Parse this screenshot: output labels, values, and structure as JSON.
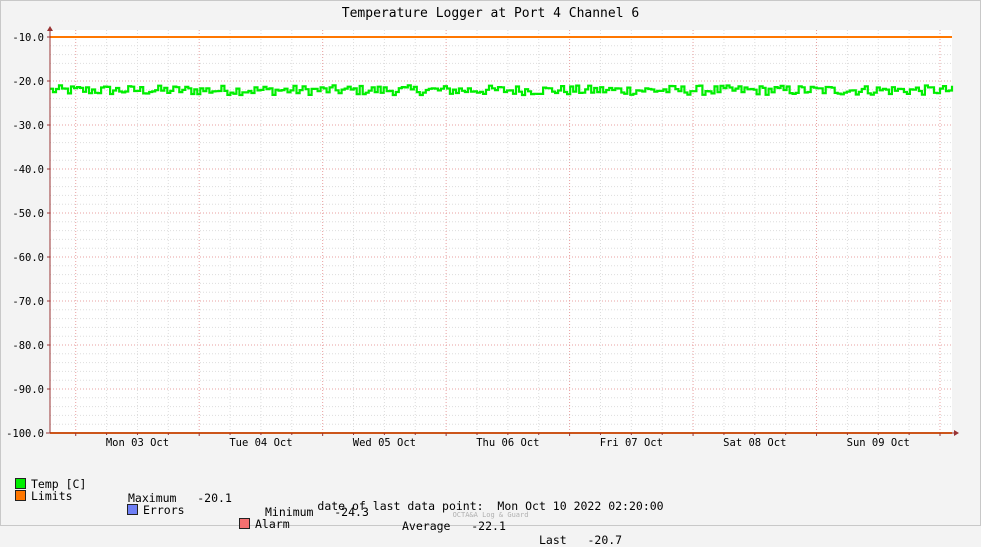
{
  "chart_data": {
    "type": "line",
    "title": "Temperature Logger at Port 4 Channel 6",
    "ylim": [
      -100,
      -10
    ],
    "y_ticks": [
      "-10.0",
      "-20.0",
      "-30.0",
      "-40.0",
      "-50.0",
      "-60.0",
      "-70.0",
      "-80.0",
      "-90.0",
      "-100.0"
    ],
    "x_range": [
      "2022-10-02 19:00",
      "2022-10-10 02:20"
    ],
    "x_ticks": [
      {
        "date": "2022-10-03",
        "label": "Mon 03 Oct"
      },
      {
        "date": "2022-10-04",
        "label": "Tue 04 Oct"
      },
      {
        "date": "2022-10-05",
        "label": "Wed 05 Oct"
      },
      {
        "date": "2022-10-06",
        "label": "Thu 06 Oct"
      },
      {
        "date": "2022-10-07",
        "label": "Fri 07 Oct"
      },
      {
        "date": "2022-10-08",
        "label": "Sat 08 Oct"
      },
      {
        "date": "2022-10-09",
        "label": "Sun 09 Oct"
      }
    ],
    "grid": true,
    "series": [
      {
        "name": "Temp [C]",
        "color": "#00ee00",
        "min": -24.3,
        "max": -20.1,
        "average": -22.1,
        "last": -20.7
      },
      {
        "name": "Limits",
        "color": "#ff7700",
        "values": [
          -10,
          -100
        ]
      }
    ],
    "legend": {
      "position": "bottom-left",
      "entries": [
        {
          "name": "Temp [C]",
          "color": "#00ee00"
        },
        {
          "name": "Limits",
          "color": "#ff7700"
        },
        {
          "name": "Errors",
          "color": "#6f7ff5"
        },
        {
          "name": "Alarm",
          "color": "#f57070"
        }
      ]
    },
    "stats": {
      "maximum_label": "Maximum",
      "maximum": "-20.1",
      "minimum_label": "Minimum",
      "minimum": "-24.3",
      "average_label": "Average",
      "average": "-22.1",
      "last_label": "Last",
      "last": "-20.7"
    },
    "last_data_point_label": "date of last data point:",
    "last_data_point": "Mon Oct 10 2022 02:20:00",
    "watermark": "OCTA&A Log & Guard"
  }
}
